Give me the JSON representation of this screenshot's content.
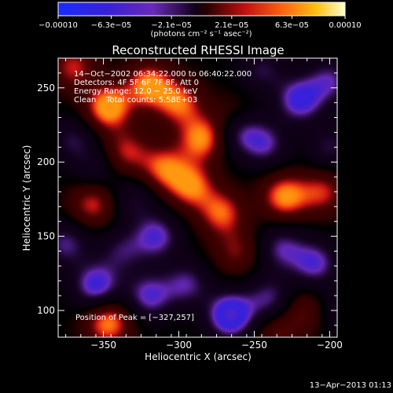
{
  "chart_data": {
    "type": "heatmap",
    "title": "Reconstructed RHESSI Image",
    "xlabel": "Heliocentric X (arcsec)",
    "ylabel": "Heliocentric Y (arcsec)",
    "xlim": [
      -380,
      -195
    ],
    "ylim": [
      82,
      270
    ],
    "x_ticks": [
      -350,
      -300,
      -250,
      -200
    ],
    "x_tick_labels": [
      "−350",
      "−300",
      "−250",
      "−200"
    ],
    "y_ticks": [
      100,
      150,
      200,
      250
    ],
    "y_tick_labels": [
      "100",
      "150",
      "200",
      "250"
    ],
    "colorbar": {
      "range": [
        -0.0001,
        0.0001
      ],
      "tick_values": [
        -0.0001,
        -6.3e-05,
        -2.1e-05,
        2.1e-05,
        6.3e-05,
        0.0001
      ],
      "tick_labels": [
        "−0.00010",
        "−6.3e−05",
        "−2.1e−05",
        "2.1e−05",
        "6.3e−05",
        "0.00010"
      ],
      "unit_label": "(photons cm⁻² s⁻¹ asec⁻²)"
    },
    "annotations": [
      "14−Oct−2002 06:34:22.000 to 06:40:22.000",
      "Detectors: 4F 5F 6F 7F 8F, Att 0",
      "Energy Range: 12.0 − 25.0 keV",
      "Clean    Total counts: 5.58E+03"
    ],
    "peak_label": "Position of Peak = [−327,257]",
    "peak_position": [
      -327,
      257
    ],
    "sources": [
      {
        "x": -347,
        "y": 237,
        "amp": 8e-05
      },
      {
        "x": -320,
        "y": 252,
        "amp": 7e-05
      },
      {
        "x": -300,
        "y": 240,
        "amp": 6e-05
      },
      {
        "x": -285,
        "y": 216,
        "amp": 7e-05
      },
      {
        "x": -310,
        "y": 196,
        "amp": 6e-05
      },
      {
        "x": -335,
        "y": 207,
        "amp": 5e-05
      },
      {
        "x": -292,
        "y": 184,
        "amp": 6.5e-05
      },
      {
        "x": -272,
        "y": 166,
        "amp": 6e-05
      },
      {
        "x": -230,
        "y": 177,
        "amp": 7e-05
      },
      {
        "x": -205,
        "y": 180,
        "amp": 5e-05
      },
      {
        "x": -357,
        "y": 172,
        "amp": 5.5e-05
      },
      {
        "x": -262,
        "y": 140,
        "amp": 4e-05
      },
      {
        "x": -347,
        "y": 92,
        "amp": 7e-05
      },
      {
        "x": -215,
        "y": 100,
        "amp": 4e-05
      },
      {
        "x": -370,
        "y": 264,
        "amp": 5e-05
      },
      {
        "x": -263,
        "y": 230,
        "amp": 3.5e-05
      },
      {
        "x": -235,
        "y": 85,
        "amp": 3.5e-05
      },
      {
        "x": -260,
        "y": 222,
        "amp": -6e-05
      },
      {
        "x": -220,
        "y": 242,
        "amp": -7e-05
      },
      {
        "x": -200,
        "y": 255,
        "amp": -5e-05
      },
      {
        "x": -243,
        "y": 212,
        "amp": -5e-05
      },
      {
        "x": -200,
        "y": 210,
        "amp": -4e-05
      },
      {
        "x": -232,
        "y": 142,
        "amp": -5e-05
      },
      {
        "x": -210,
        "y": 132,
        "amp": -6e-05
      },
      {
        "x": -240,
        "y": 108,
        "amp": -5e-05
      },
      {
        "x": -266,
        "y": 97,
        "amp": -9e-05
      },
      {
        "x": -295,
        "y": 118,
        "amp": -5e-05
      },
      {
        "x": -320,
        "y": 110,
        "amp": -6e-05
      },
      {
        "x": -355,
        "y": 117,
        "amp": -7e-05
      },
      {
        "x": -375,
        "y": 145,
        "amp": -5e-05
      },
      {
        "x": -338,
        "y": 140,
        "amp": -4e-05
      },
      {
        "x": -315,
        "y": 150,
        "amp": -6e-05
      },
      {
        "x": -330,
        "y": 175,
        "amp": -3.5e-05
      },
      {
        "x": -355,
        "y": 195,
        "amp": -3e-05
      },
      {
        "x": -370,
        "y": 215,
        "amp": -4e-05
      },
      {
        "x": -245,
        "y": 262,
        "amp": -4e-05
      },
      {
        "x": -198,
        "y": 100,
        "amp": -3e-05
      }
    ]
  },
  "footer": {
    "timestamp": "13−Apr−2013 01:13"
  }
}
